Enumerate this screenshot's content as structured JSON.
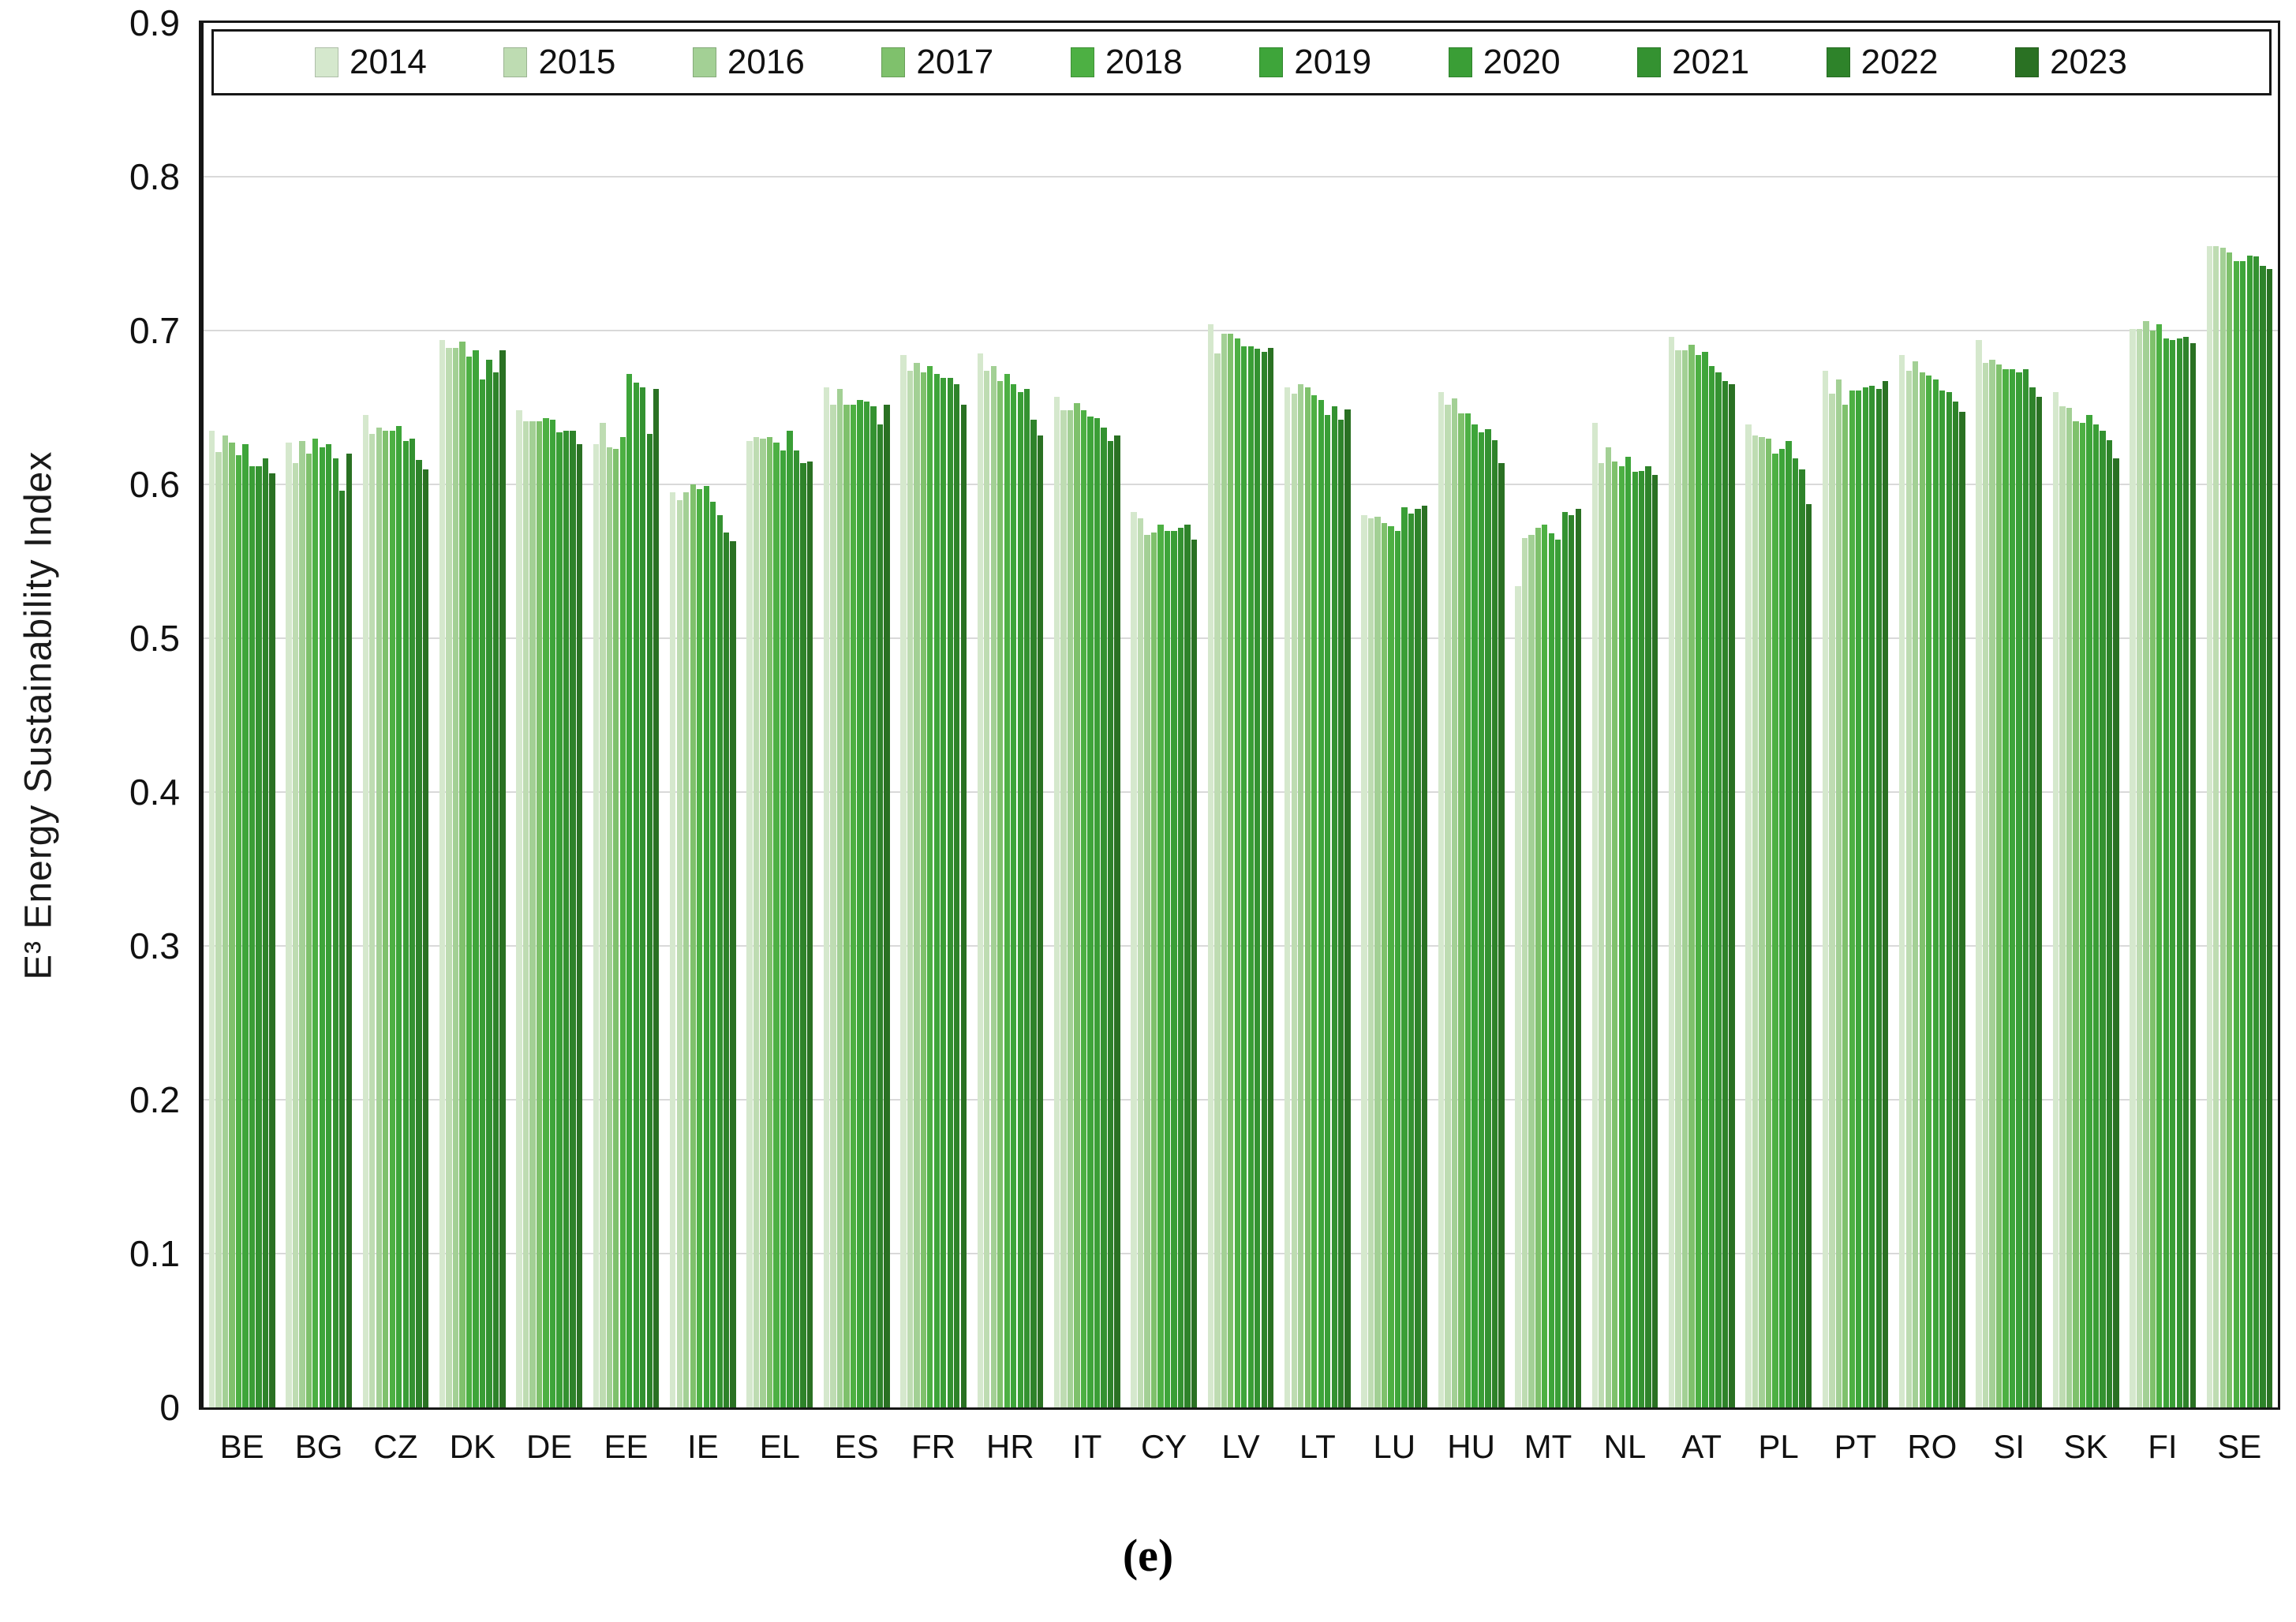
{
  "figure": {
    "y_axis_label": "E³ Energy Sustainability Index",
    "caption": "(e)",
    "y_ticks": [
      "0",
      "0.1",
      "0.2",
      "0.3",
      "0.4",
      "0.5",
      "0.6",
      "0.7",
      "0.8",
      "0.9"
    ]
  },
  "chart_data": {
    "type": "bar",
    "title": "",
    "xlabel": "",
    "ylabel": "E³ Energy Sustainability Index",
    "ylim": [
      0,
      0.9
    ],
    "grid": true,
    "legend_position": "top-inside",
    "categories": [
      "BE",
      "BG",
      "CZ",
      "DK",
      "DE",
      "EE",
      "IE",
      "EL",
      "ES",
      "FR",
      "HR",
      "IT",
      "CY",
      "LV",
      "LT",
      "LU",
      "HU",
      "MT",
      "NL",
      "AT",
      "PL",
      "PT",
      "RO",
      "SI",
      "SK",
      "FI",
      "SE"
    ],
    "series": [
      {
        "name": "2014",
        "color": "#d5e8cd",
        "values": [
          0.635,
          0.627,
          0.645,
          0.694,
          0.648,
          0.626,
          0.595,
          0.628,
          0.663,
          0.684,
          0.685,
          0.657,
          0.582,
          0.704,
          0.663,
          0.58,
          0.66,
          0.534,
          0.64,
          0.696,
          0.639,
          0.674,
          0.684,
          0.694,
          0.66,
          0.701,
          0.755
        ]
      },
      {
        "name": "2015",
        "color": "#bedcb2",
        "values": [
          0.621,
          0.614,
          0.633,
          0.689,
          0.641,
          0.64,
          0.59,
          0.631,
          0.652,
          0.674,
          0.674,
          0.648,
          0.578,
          0.685,
          0.659,
          0.578,
          0.652,
          0.565,
          0.614,
          0.687,
          0.632,
          0.659,
          0.674,
          0.679,
          0.651,
          0.701,
          0.755
        ]
      },
      {
        "name": "2016",
        "color": "#a3d095",
        "values": [
          0.632,
          0.628,
          0.637,
          0.689,
          0.641,
          0.624,
          0.595,
          0.63,
          0.662,
          0.679,
          0.677,
          0.648,
          0.567,
          0.698,
          0.665,
          0.579,
          0.656,
          0.567,
          0.624,
          0.687,
          0.631,
          0.668,
          0.68,
          0.681,
          0.65,
          0.706,
          0.754
        ]
      },
      {
        "name": "2017",
        "color": "#7fc16c",
        "values": [
          0.627,
          0.62,
          0.635,
          0.693,
          0.641,
          0.623,
          0.6,
          0.631,
          0.652,
          0.673,
          0.667,
          0.653,
          0.569,
          0.698,
          0.663,
          0.575,
          0.646,
          0.572,
          0.615,
          0.691,
          0.63,
          0.652,
          0.673,
          0.678,
          0.641,
          0.7,
          0.751
        ]
      },
      {
        "name": "2018",
        "color": "#4db043",
        "values": [
          0.619,
          0.63,
          0.635,
          0.683,
          0.643,
          0.631,
          0.597,
          0.627,
          0.652,
          0.677,
          0.672,
          0.648,
          0.574,
          0.695,
          0.658,
          0.573,
          0.646,
          0.574,
          0.612,
          0.684,
          0.62,
          0.661,
          0.671,
          0.675,
          0.64,
          0.704,
          0.745
        ]
      },
      {
        "name": "2019",
        "color": "#3ea53a",
        "values": [
          0.626,
          0.624,
          0.638,
          0.687,
          0.642,
          0.672,
          0.599,
          0.622,
          0.655,
          0.672,
          0.665,
          0.644,
          0.57,
          0.69,
          0.655,
          0.57,
          0.639,
          0.568,
          0.618,
          0.686,
          0.623,
          0.661,
          0.668,
          0.675,
          0.645,
          0.695,
          0.745
        ]
      },
      {
        "name": "2020",
        "color": "#3a9e36",
        "values": [
          0.612,
          0.626,
          0.628,
          0.668,
          0.634,
          0.666,
          0.589,
          0.635,
          0.654,
          0.669,
          0.66,
          0.643,
          0.57,
          0.69,
          0.645,
          0.585,
          0.634,
          0.564,
          0.608,
          0.677,
          0.628,
          0.663,
          0.661,
          0.673,
          0.639,
          0.694,
          0.749
        ]
      },
      {
        "name": "2021",
        "color": "#349231",
        "values": [
          0.612,
          0.617,
          0.63,
          0.681,
          0.635,
          0.663,
          0.58,
          0.622,
          0.651,
          0.669,
          0.662,
          0.637,
          0.572,
          0.688,
          0.651,
          0.581,
          0.636,
          0.582,
          0.609,
          0.673,
          0.617,
          0.664,
          0.66,
          0.675,
          0.635,
          0.695,
          0.748
        ]
      },
      {
        "name": "2022",
        "color": "#2e832a",
        "values": [
          0.617,
          0.596,
          0.616,
          0.673,
          0.635,
          0.633,
          0.569,
          0.614,
          0.639,
          0.665,
          0.642,
          0.628,
          0.574,
          0.686,
          0.642,
          0.584,
          0.629,
          0.58,
          0.612,
          0.667,
          0.61,
          0.662,
          0.654,
          0.663,
          0.629,
          0.696,
          0.742
        ]
      },
      {
        "name": "2023",
        "color": "#2a7123",
        "values": [
          0.607,
          0.62,
          0.61,
          0.687,
          0.626,
          0.662,
          0.563,
          0.615,
          0.652,
          0.652,
          0.632,
          0.632,
          0.564,
          0.689,
          0.649,
          0.586,
          0.614,
          0.584,
          0.606,
          0.665,
          0.587,
          0.667,
          0.647,
          0.657,
          0.617,
          0.692,
          0.74
        ]
      }
    ]
  }
}
